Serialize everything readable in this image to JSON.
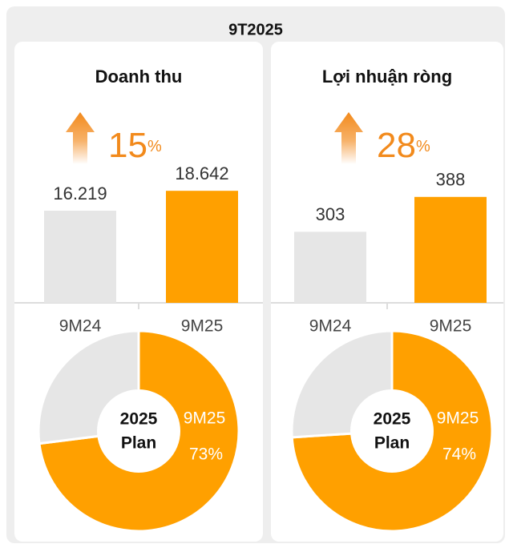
{
  "title": "9T2025",
  "chart_data": [
    {
      "type": "bar",
      "title": "Doanh thu",
      "growth": 15,
      "growth_unit": "%",
      "categories": [
        "9M24",
        "9M25"
      ],
      "values": [
        16219,
        18642
      ],
      "value_labels": [
        "16.219",
        "18.642"
      ],
      "colors": [
        "#e6e6e6",
        "#ffa000"
      ],
      "ylim": [
        5000,
        25000
      ]
    },
    {
      "type": "pie",
      "categories": [
        "9M25",
        null
      ],
      "values": [
        73,
        27
      ],
      "value_labels": [
        "73%",
        null
      ],
      "colors": [
        "#ffa000",
        "#e6e6e6"
      ],
      "center_label": [
        "2025",
        "Plan"
      ]
    },
    {
      "type": "bar",
      "title": "Lợi nhuận ròng",
      "growth": 28,
      "growth_unit": "%",
      "categories": [
        "9M24",
        "9M25"
      ],
      "values": [
        303,
        388
      ],
      "value_labels": [
        "303",
        "388"
      ],
      "colors": [
        "#e6e6e6",
        "#ffa000"
      ],
      "ylim": [
        130,
        530
      ]
    },
    {
      "type": "pie",
      "categories": [
        "9M25",
        null
      ],
      "values": [
        74,
        26
      ],
      "value_labels": [
        "74%",
        null
      ],
      "colors": [
        "#ffa000",
        "#e6e6e6"
      ],
      "center_label": [
        "2025",
        "Plan"
      ]
    }
  ]
}
